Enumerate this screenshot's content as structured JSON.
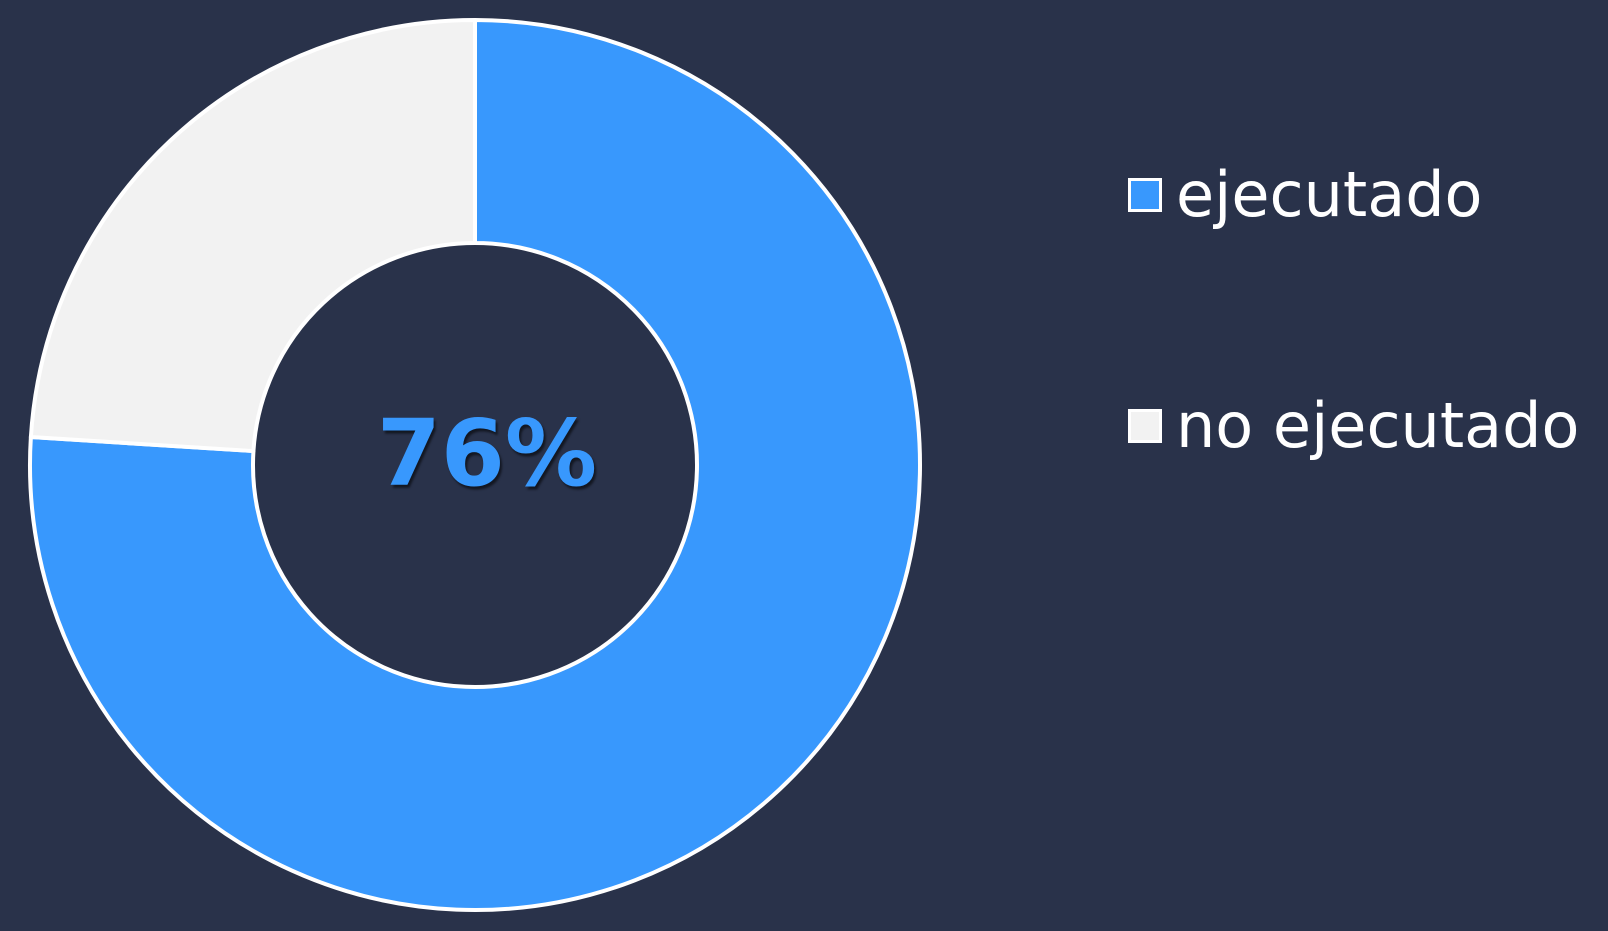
{
  "chart_data": {
    "type": "pie",
    "donut": true,
    "center_label": "76%",
    "slices": [
      {
        "label": "ejecutado",
        "value": 76,
        "color": "#3898fd"
      },
      {
        "label": "no ejecutado",
        "value": 24,
        "color": "#f2f2f2"
      }
    ],
    "legend": {
      "placement": "right",
      "items": [
        "ejecutado",
        "no ejecutado"
      ]
    }
  },
  "colors": {
    "background": "#29324a",
    "slice_border": "#ffffff",
    "center_text": "#3898fd",
    "legend_text": "#ffffff"
  }
}
